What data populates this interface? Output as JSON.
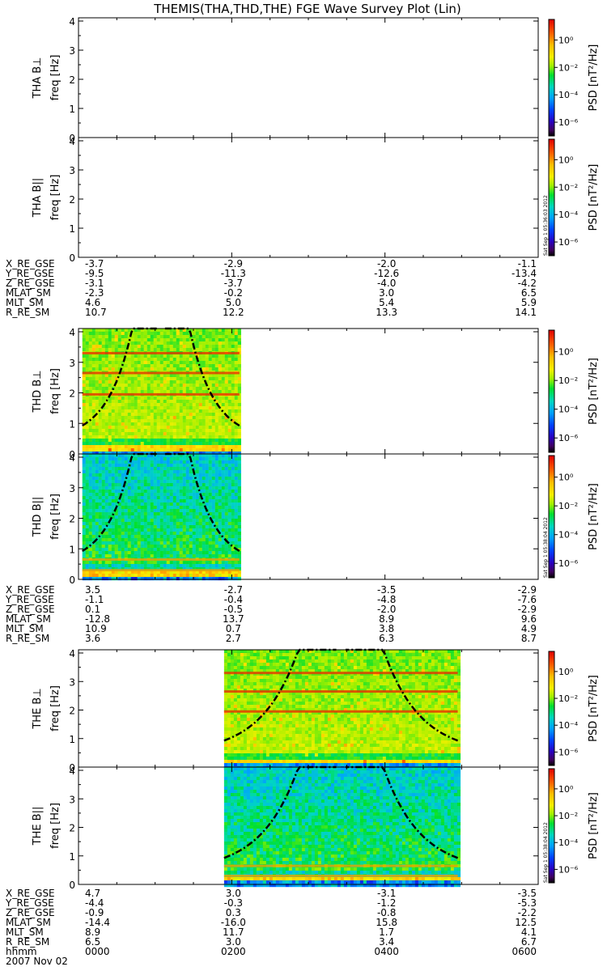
{
  "title": "THEMIS(THA,THD,THE) FGE Wave Survey Plot (Lin)",
  "colorbar": {
    "label": "PSD [nT²/Hz]",
    "ticks": [
      "10⁰",
      "10⁻²",
      "10⁻⁴",
      "10⁻⁶"
    ],
    "tick_exponents": [
      0,
      -2,
      -4,
      -6
    ],
    "scale": "log"
  },
  "stamps": [
    "Sat Sep 1 05:36:03 2012",
    "Sat Sep 1 05:38:04 2012",
    "Sat Sep 1 05:38:04 2012"
  ],
  "time_axis": {
    "label": "hhmm",
    "ticks": [
      "0000",
      "0200",
      "0400",
      "0600"
    ],
    "date": "2007 Nov 02"
  },
  "ephemeris_labels": [
    "X_RE_GSE",
    "Y_RE_GSE",
    "Z_RE_GSE",
    "MLAT_SM",
    "MLT_SM",
    "R_RE_SM"
  ],
  "ephemeris": [
    {
      "X_RE_GSE": [
        "-3.7",
        "-2.9",
        "-2.0",
        "-1.1"
      ],
      "Y_RE_GSE": [
        "-9.5",
        "-11.3",
        "-12.6",
        "-13.4"
      ],
      "Z_RE_GSE": [
        "-3.1",
        "-3.7",
        "-4.0",
        "-4.2"
      ],
      "MLAT_SM": [
        "-2.3",
        "-0.2",
        "3.0",
        "6.5"
      ],
      "MLT_SM": [
        "4.6",
        "5.0",
        "5.4",
        "5.9"
      ],
      "R_RE_SM": [
        "10.7",
        "12.2",
        "13.3",
        "14.1"
      ]
    },
    {
      "X_RE_GSE": [
        "3.5",
        "-2.7",
        "-3.5",
        "-2.9"
      ],
      "Y_RE_GSE": [
        "-1.1",
        "-0.4",
        "-4.8",
        "-7.6"
      ],
      "Z_RE_GSE": [
        "0.1",
        "-0.5",
        "-2.0",
        "-2.9"
      ],
      "MLAT_SM": [
        "-12.8",
        "13.7",
        "8.9",
        "9.6"
      ],
      "MLT_SM": [
        "10.9",
        "0.7",
        "3.8",
        "4.9"
      ],
      "R_RE_SM": [
        "3.6",
        "2.7",
        "6.3",
        "8.7"
      ]
    },
    {
      "X_RE_GSE": [
        "4.7",
        "3.0",
        "-3.1",
        "-3.5"
      ],
      "Y_RE_GSE": [
        "-4.4",
        "-0.3",
        "-1.2",
        "-5.3"
      ],
      "Z_RE_GSE": [
        "-0.9",
        "0.3",
        "-0.8",
        "-2.2"
      ],
      "MLAT_SM": [
        "-14.4",
        "-16.0",
        "15.8",
        "12.5"
      ],
      "MLT_SM": [
        "8.9",
        "11.7",
        "1.7",
        "4.1"
      ],
      "R_RE_SM": [
        "6.5",
        "3.0",
        "3.4",
        "6.7"
      ]
    }
  ],
  "chart_data": [
    {
      "type": "heatmap",
      "probe": "THA",
      "component": "B⊥",
      "ylabel_probe": "THA B⊥",
      "ylabel": "freq [Hz]",
      "xlim_hours": [
        0,
        6
      ],
      "ylim": [
        0,
        4
      ],
      "yticks": [
        "0",
        "1",
        "2",
        "3",
        "4"
      ],
      "data_hours": null,
      "dominant_levels": []
    },
    {
      "type": "heatmap",
      "probe": "THA",
      "component": "B||",
      "ylabel_probe": "THA B||",
      "ylabel": "freq [Hz]",
      "xlim_hours": [
        0,
        6
      ],
      "ylim": [
        0,
        4
      ],
      "yticks": [
        "0",
        "1",
        "2",
        "3",
        "4"
      ],
      "data_hours": null,
      "dominant_levels": []
    },
    {
      "type": "heatmap",
      "probe": "THD",
      "component": "B⊥",
      "ylabel_probe": "THD B⊥",
      "ylabel": "freq [Hz]",
      "xlim_hours": [
        0,
        6
      ],
      "ylim": [
        0,
        4
      ],
      "yticks": [
        "0",
        "1",
        "2",
        "3",
        "4"
      ],
      "data_hours": [
        0.05,
        2.1
      ],
      "dominant_levels": [
        -1.5,
        -2.0,
        -2.5
      ]
    },
    {
      "type": "heatmap",
      "probe": "THD",
      "component": "B||",
      "ylabel_probe": "THD B||",
      "ylabel": "freq [Hz]",
      "xlim_hours": [
        0,
        6
      ],
      "ylim": [
        0,
        4
      ],
      "yticks": [
        "0",
        "1",
        "2",
        "3",
        "4"
      ],
      "data_hours": [
        0.05,
        2.1
      ],
      "dominant_levels": [
        -2.5,
        -3.0
      ]
    },
    {
      "type": "heatmap",
      "probe": "THE",
      "component": "B⊥",
      "ylabel_probe": "THE B⊥",
      "ylabel": "freq [Hz]",
      "xlim_hours": [
        0,
        6
      ],
      "ylim": [
        0,
        4
      ],
      "yticks": [
        "0",
        "1",
        "2",
        "3",
        "4"
      ],
      "data_hours": [
        1.9,
        4.95
      ],
      "dominant_levels": [
        -1.5,
        -2.0,
        -2.5
      ]
    },
    {
      "type": "heatmap",
      "probe": "THE",
      "component": "B||",
      "ylabel_probe": "THE B||",
      "ylabel": "freq [Hz]",
      "xlim_hours": [
        0,
        6
      ],
      "ylim": [
        0,
        4
      ],
      "yticks": [
        "0",
        "1",
        "2",
        "3",
        "4"
      ],
      "data_hours": [
        1.9,
        4.95
      ],
      "dominant_levels": [
        -2.5,
        -3.0
      ]
    }
  ]
}
